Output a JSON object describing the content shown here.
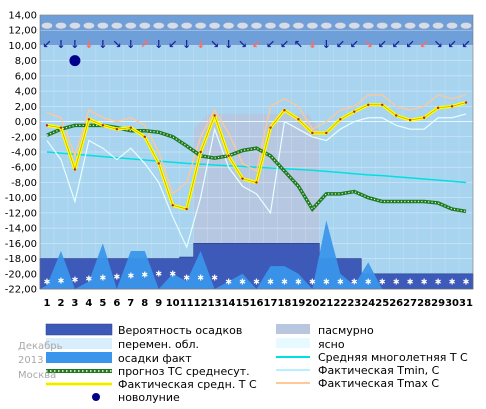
{
  "meta": {
    "month": "Декабрь",
    "year": "2013",
    "city": "Москва"
  },
  "legend": {
    "precip_prob": "Вероятность осадков",
    "variable": "перемен. обл.",
    "precip_fact": "осадки факт",
    "forecast": "прогноз ТС среднесут.",
    "actual": "Фактическая средн. Т С",
    "newmoon": "новолуние",
    "overcast": "пасмурно",
    "clear": "ясно",
    "climate": "Средняя многолетняя Т С",
    "tmin": "Фактическая Tmin, С",
    "tmax": "Фактическая Tmax С"
  },
  "colors": {
    "plot_bg": "#a8d4f0",
    "band": "#6f9fd8",
    "overcast": "#b8c6de",
    "precip_prob": "#3e5ab8",
    "precip_fact": "#3a96ea",
    "actual": "#ffff00",
    "forecast": "#1f7a1f",
    "climate": "#00e0e0",
    "tmin": "#e6ffff",
    "tmax": "#ffc896",
    "newmoon": "#00008b"
  },
  "chart_data": {
    "type": "line",
    "x": [
      1,
      2,
      3,
      4,
      5,
      6,
      7,
      8,
      9,
      10,
      11,
      12,
      13,
      14,
      15,
      16,
      17,
      18,
      19,
      20,
      21,
      22,
      23,
      24,
      25,
      26,
      27,
      28,
      29,
      30,
      31
    ],
    "ylim": [
      -22,
      14
    ],
    "yticks": [
      "14,00",
      "12,00",
      "10,00",
      "8,00",
      "6,00",
      "4,00",
      "2,00",
      "0,00",
      "-2,00",
      "-4,00",
      "-6,00",
      "-8,00",
      "-10,00",
      "-12,00",
      "-14,00",
      "-16,00",
      "-18,00",
      "-20,00",
      "-22,00"
    ],
    "xticks": [
      "1",
      "2",
      "3",
      "4",
      "5",
      "6",
      "7",
      "8",
      "9",
      "10",
      "11",
      "12",
      "13",
      "14",
      "15",
      "16",
      "17",
      "18",
      "19",
      "20",
      "21",
      "22",
      "23",
      "24",
      "25",
      "26",
      "27",
      "28",
      "29",
      "30",
      "31"
    ],
    "series": [
      {
        "name": "Фактическая средн. Т С",
        "values": [
          -0.5,
          -0.8,
          -6.3,
          0.3,
          -0.5,
          -1,
          -0.8,
          -2,
          -5.5,
          -11,
          -11.5,
          -4,
          0.8,
          -4.5,
          -7.5,
          -8,
          -0.8,
          1.5,
          0.3,
          -1.5,
          -1.5,
          0.3,
          1.3,
          2.2,
          2.2,
          0.8,
          0.2,
          0.5,
          1.8,
          2,
          2.5
        ]
      },
      {
        "name": "Фактическая Tmax С",
        "values": [
          1.2,
          0.5,
          -4.5,
          1.5,
          0.5,
          0,
          0.5,
          -0.5,
          -4,
          -9.5,
          -8,
          -2,
          1.5,
          -1.5,
          -5.5,
          -6.5,
          2,
          3,
          2,
          -1,
          0,
          1.5,
          2,
          3.5,
          3.5,
          2,
          1.5,
          2,
          3.5,
          3,
          3.5
        ]
      },
      {
        "name": "Фактическая Tmin, С",
        "values": [
          -2.5,
          -5,
          -10.5,
          -2.5,
          -3.5,
          -5,
          -3.5,
          -5.5,
          -8,
          -12.5,
          -16.5,
          -10,
          -1,
          -6,
          -8.5,
          -9.5,
          -12,
          0,
          -1,
          -2,
          -2.5,
          -1,
          0,
          0.5,
          0.5,
          -0.5,
          -1,
          -1,
          0.5,
          0.5,
          1
        ]
      },
      {
        "name": "прогноз ТС среднесут.",
        "values": [
          -1.8,
          -1,
          -0.5,
          -0.5,
          -0.5,
          -0.8,
          -1.2,
          -1.2,
          -1.4,
          -2,
          -3.2,
          -4.5,
          -4.8,
          -4.5,
          -3.8,
          -3.5,
          -4.5,
          -6.5,
          -8.5,
          -11.5,
          -9.5,
          -9.5,
          -9.2,
          -10,
          -10.5,
          -10.5,
          -10.5,
          -10.5,
          -10.7,
          -11.5,
          -11.8
        ]
      },
      {
        "name": "Средняя многолетняя Т С",
        "values": [
          -4,
          -4.15,
          -4.3,
          -4.45,
          -4.6,
          -4.75,
          -4.9,
          -5.05,
          -5.2,
          -5.35,
          -5.5,
          -5.6,
          -5.7,
          -5.8,
          -5.9,
          -6,
          -6.1,
          -6.2,
          -6.3,
          -6.4,
          -6.55,
          -6.7,
          -6.85,
          -7,
          -7.1,
          -7.25,
          -7.4,
          -7.55,
          -7.7,
          -7.85,
          -8
        ]
      },
      {
        "name": "Вероятность осадков",
        "values": [
          -18,
          -18,
          -18,
          -18,
          -18,
          -18,
          -18,
          -18,
          -18,
          -18,
          -17.8,
          -16,
          -16,
          -16,
          -16,
          -16,
          -16,
          -16,
          -16,
          -16,
          -18,
          -18,
          -18,
          -20,
          -20,
          -20,
          -20,
          -20,
          -20,
          -20,
          -20
        ]
      },
      {
        "name": "осадки факт",
        "values": [
          -21.5,
          -17,
          -22,
          -21,
          -16,
          -22,
          -17,
          -17,
          -22,
          -20,
          -21,
          -17,
          -22,
          -21,
          -20,
          -22,
          -19,
          -19,
          -20,
          -22,
          -13,
          -20,
          -21.5,
          -18.5,
          -22,
          -22,
          -22,
          -22,
          -22,
          -22,
          -22
        ]
      },
      {
        "name": "новолуние",
        "day": 3,
        "value": 8
      }
    ],
    "overcast": [
      {
        "from": 12,
        "to": 20
      }
    ],
    "newmoon_day": 3
  }
}
